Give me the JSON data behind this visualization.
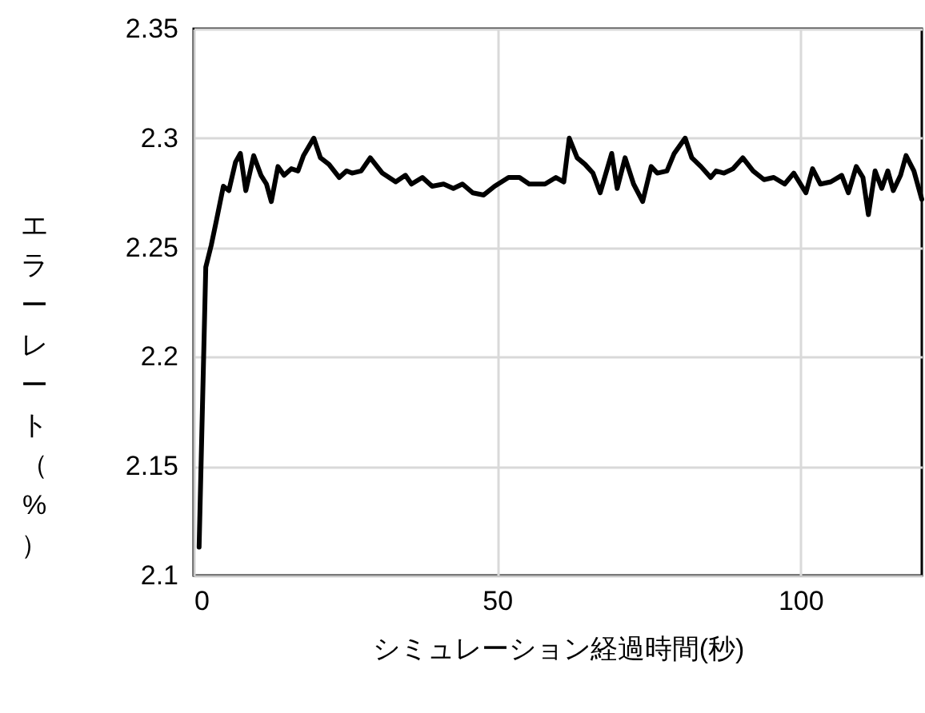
{
  "chart_data": {
    "type": "line",
    "xlabel": "シミュレーション経過時間(秒)",
    "ylabel": "エラーレート（%）",
    "xlim": [
      0,
      120
    ],
    "xticks": [
      0,
      50,
      100
    ],
    "ylim": [
      2.1,
      2.35
    ],
    "yticks": [
      2.1,
      2.15,
      2.2,
      2.25,
      2.3,
      2.35
    ],
    "grid": true,
    "series": [
      {
        "color": "#000000",
        "x": [
          0.9,
          2.0,
          2.9,
          3.8,
          4.9,
          5.8,
          6.9,
          7.7,
          8.6,
          9.9,
          11.1,
          12.0,
          12.8,
          13.9,
          14.9,
          16.1,
          17.2,
          18.1,
          19.8,
          20.9,
          22.3,
          24.0,
          25.2,
          26.1,
          27.6,
          29.1,
          31.1,
          33.3,
          34.9,
          35.9,
          37.7,
          39.3,
          41.2,
          42.8,
          44.3,
          46.0,
          47.8,
          49.6,
          51.9,
          53.7,
          55.3,
          57.9,
          59.7,
          61.0,
          61.9,
          63.2,
          64.5,
          65.8,
          67.0,
          68.9,
          69.8,
          71.1,
          72.5,
          74.0,
          75.4,
          76.4,
          78.0,
          79.2,
          81.0,
          82.1,
          83.6,
          85.2,
          86.1,
          87.4,
          88.9,
          90.5,
          92.2,
          94.0,
          95.6,
          97.4,
          98.9,
          100.9,
          102.0,
          103.3,
          105.0,
          106.8,
          107.9,
          109.2,
          110.3,
          111.2,
          112.3,
          113.4,
          114.4,
          115.3,
          116.5,
          117.4,
          118.7,
          120
        ],
        "values": [
          2.113,
          2.241,
          2.251,
          2.263,
          2.278,
          2.276,
          2.289,
          2.293,
          2.276,
          2.292,
          2.283,
          2.279,
          2.271,
          2.287,
          2.283,
          2.286,
          2.285,
          2.292,
          2.3,
          2.291,
          2.288,
          2.282,
          2.285,
          2.284,
          2.285,
          2.291,
          2.284,
          2.28,
          2.283,
          2.279,
          2.282,
          2.278,
          2.279,
          2.277,
          2.279,
          2.275,
          2.274,
          2.278,
          2.282,
          2.282,
          2.279,
          2.279,
          2.282,
          2.28,
          2.3,
          2.291,
          2.288,
          2.284,
          2.275,
          2.293,
          2.277,
          2.291,
          2.279,
          2.271,
          2.287,
          2.284,
          2.285,
          2.293,
          2.3,
          2.291,
          2.287,
          2.282,
          2.285,
          2.284,
          2.286,
          2.291,
          2.285,
          2.281,
          2.282,
          2.279,
          2.284,
          2.275,
          2.286,
          2.279,
          2.28,
          2.283,
          2.275,
          2.287,
          2.282,
          2.265,
          2.285,
          2.277,
          2.285,
          2.276,
          2.283,
          2.292,
          2.285,
          2.272
        ]
      }
    ]
  }
}
